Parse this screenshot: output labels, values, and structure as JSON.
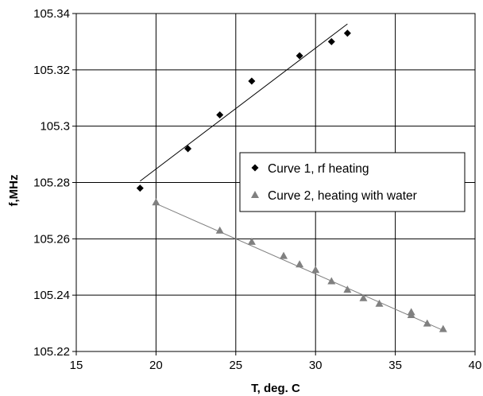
{
  "chart_data": {
    "type": "scatter",
    "xlabel": "T, deg. C",
    "ylabel": "f,MHz",
    "xlim": [
      15,
      40
    ],
    "ylim": [
      105.22,
      105.34
    ],
    "xticks": [
      "15",
      "20",
      "25",
      "30",
      "35",
      "40"
    ],
    "yticks": [
      "105.22",
      "105.24",
      "105.26",
      "105.28",
      "105.3",
      "105.32",
      "105.34"
    ],
    "grid": true,
    "legend_position": "center-right",
    "series": [
      {
        "name": "Curve 1, rf heating",
        "marker": "diamond",
        "color": "#000000",
        "x": [
          19,
          22,
          24,
          26,
          29,
          31,
          32
        ],
        "y": [
          105.278,
          105.292,
          105.304,
          105.316,
          105.325,
          105.33,
          105.333
        ],
        "trendline": {
          "x": [
            19,
            32
          ],
          "y": [
            105.2805,
            105.3363
          ]
        }
      },
      {
        "name": "Curve 2, heating with water",
        "marker": "triangle",
        "color": "#808080",
        "x": [
          20,
          24,
          26,
          28,
          29,
          30,
          31,
          32,
          33,
          34,
          36,
          36,
          37,
          38
        ],
        "y": [
          105.273,
          105.263,
          105.259,
          105.254,
          105.251,
          105.249,
          105.245,
          105.242,
          105.239,
          105.237,
          105.234,
          105.233,
          105.23,
          105.228
        ],
        "trendline": {
          "x": [
            20,
            38
          ],
          "y": [
            105.2725,
            105.2275
          ]
        }
      }
    ]
  }
}
